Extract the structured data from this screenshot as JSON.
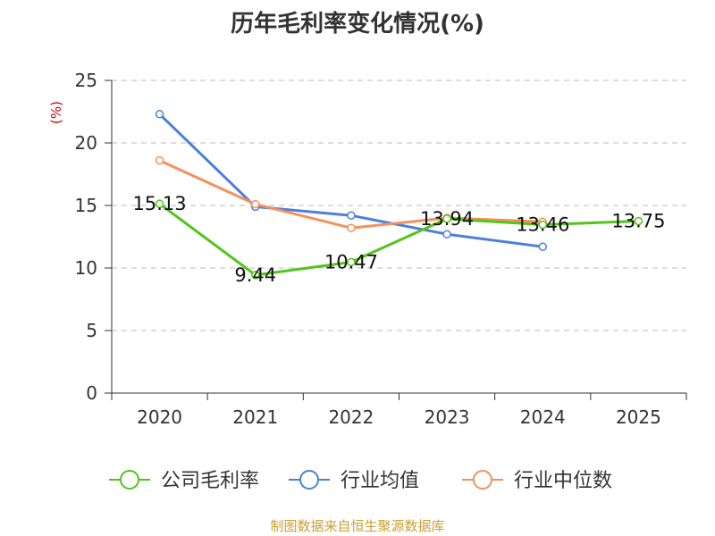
{
  "chart_data": {
    "type": "line",
    "title": "历年毛利率变化情况(%)",
    "ylabel": "(%)",
    "xlabel": "",
    "categories": [
      "2020",
      "2021",
      "2022",
      "2023",
      "2024",
      "2025"
    ],
    "ylim": [
      0,
      25
    ],
    "yticks": [
      0,
      5,
      10,
      15,
      20,
      25
    ],
    "grid": true,
    "legend_position": "bottom",
    "series": [
      {
        "name": "公司毛利率",
        "color": "#52c41a",
        "values": [
          15.13,
          9.44,
          10.47,
          13.94,
          13.46,
          13.75
        ],
        "labels": [
          "15.13",
          "9.44",
          "10.47",
          "13.94",
          "13.46",
          "13.75"
        ]
      },
      {
        "name": "行业均值",
        "color": "#4a7fdc",
        "values": [
          22.3,
          14.9,
          14.2,
          12.7,
          11.7,
          null
        ]
      },
      {
        "name": "行业中位数",
        "color": "#f4915a",
        "values": [
          18.6,
          15.1,
          13.2,
          14.0,
          13.7,
          null
        ]
      }
    ],
    "ylabel_color": "#cc0000"
  },
  "footer": {
    "source": "制图数据来自恒生聚源数据库",
    "color": "#c8a035"
  }
}
